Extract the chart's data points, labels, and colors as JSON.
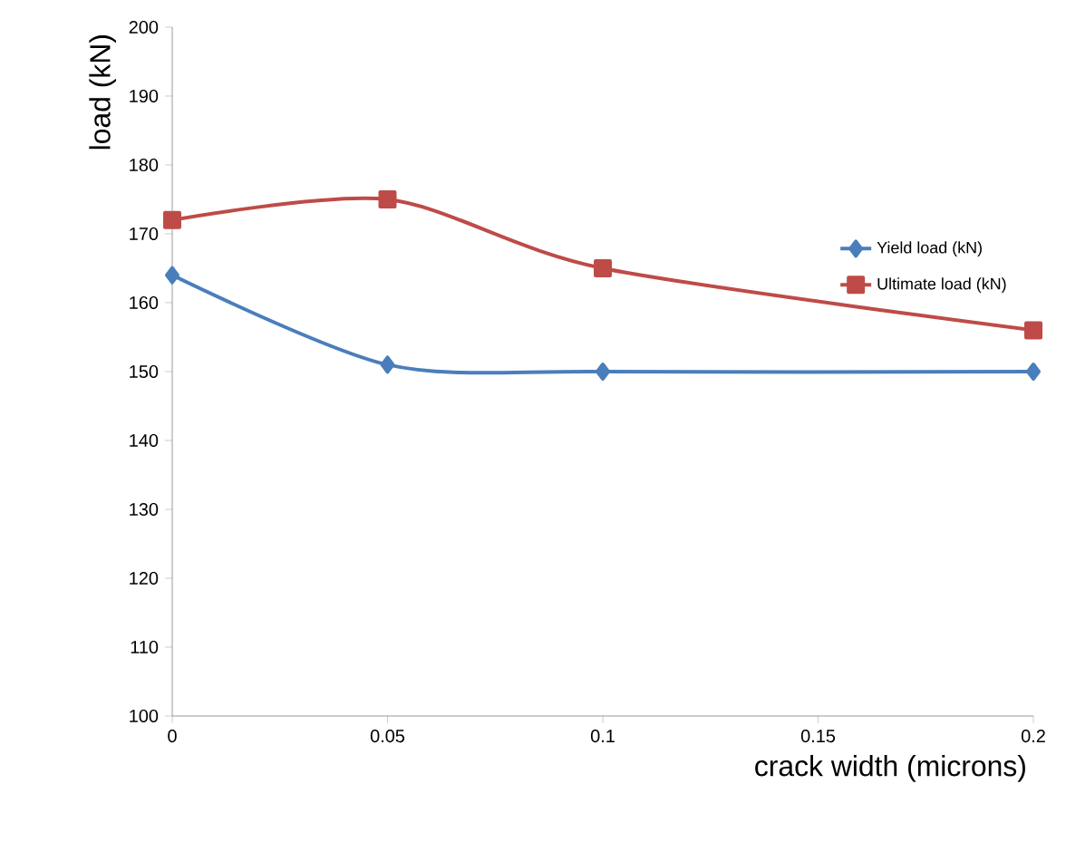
{
  "chart_data": {
    "type": "line",
    "xlabel": "crack width (microns)",
    "ylabel": "load (kN)",
    "x": [
      0,
      0.05,
      0.1,
      0.2
    ],
    "series": [
      {
        "name": "Yield load (kN)",
        "color": "#4a7ebb",
        "marker": "diamond",
        "values": [
          164,
          151,
          150,
          150
        ]
      },
      {
        "name": "Ultimate load (kN)",
        "color": "#be4b48",
        "marker": "square",
        "values": [
          172,
          175,
          165,
          156
        ]
      }
    ],
    "xlim": [
      0,
      0.2
    ],
    "xticks": [
      0,
      0.05,
      0.1,
      0.15,
      0.2
    ],
    "ylim": [
      100,
      200
    ],
    "yticks": [
      100,
      110,
      120,
      130,
      140,
      150,
      160,
      170,
      180,
      190,
      200
    ],
    "grid": false,
    "legend": "right"
  }
}
